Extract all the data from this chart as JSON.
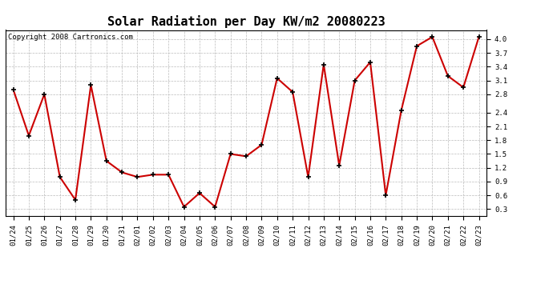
{
  "title": "Solar Radiation per Day KW/m2 20080223",
  "copyright": "Copyright 2008 Cartronics.com",
  "dates": [
    "01/24",
    "01/25",
    "01/26",
    "01/27",
    "01/28",
    "01/29",
    "01/30",
    "01/31",
    "02/01",
    "02/02",
    "02/03",
    "02/04",
    "02/05",
    "02/06",
    "02/07",
    "02/08",
    "02/09",
    "02/10",
    "02/11",
    "02/12",
    "02/13",
    "02/14",
    "02/15",
    "02/16",
    "02/17",
    "02/18",
    "02/19",
    "02/20",
    "02/21",
    "02/22",
    "02/23"
  ],
  "values": [
    2.9,
    1.9,
    2.8,
    1.0,
    0.5,
    3.0,
    1.35,
    1.1,
    1.0,
    1.05,
    1.05,
    0.35,
    0.65,
    0.35,
    1.5,
    1.45,
    1.7,
    3.15,
    2.85,
    1.0,
    3.45,
    1.25,
    3.1,
    3.5,
    0.6,
    2.45,
    3.85,
    4.05,
    3.2,
    2.95,
    4.05
  ],
  "line_color": "#cc0000",
  "marker": "+",
  "marker_size": 5,
  "marker_color": "#000000",
  "bg_color": "#ffffff",
  "grid_color": "#bbbbbb",
  "ylim": [
    0.15,
    4.2
  ],
  "yticks": [
    0.3,
    0.6,
    0.9,
    1.2,
    1.5,
    1.8,
    2.1,
    2.4,
    2.8,
    3.1,
    3.4,
    3.7,
    4.0
  ],
  "title_fontsize": 11,
  "copyright_fontsize": 6.5,
  "tick_fontsize": 6.5,
  "line_width": 1.5
}
